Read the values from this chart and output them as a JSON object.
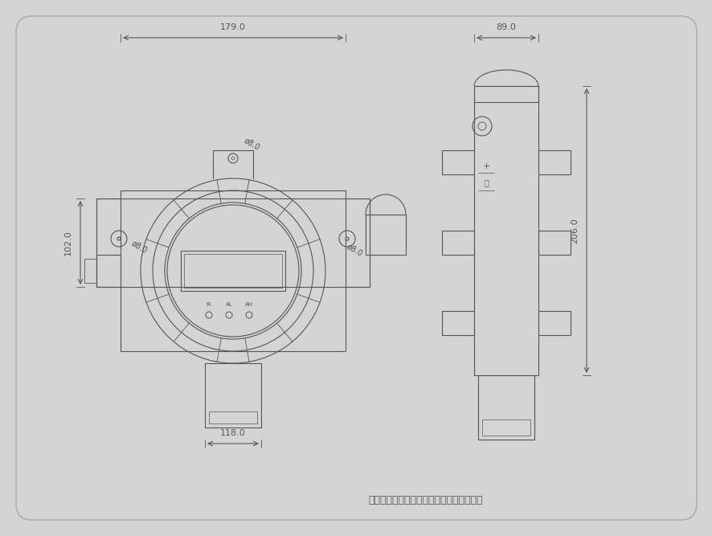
{
  "bg_color": "#d4d4d4",
  "line_color": "#555555",
  "dim_color": "#555555",
  "title": "带声光报警气体检测仪外形及其安装孔位图",
  "title_fontsize": 9,
  "dim_fontsize": 8,
  "label_fontsize": 7,
  "dim_179": "179.0",
  "dim_102": "102.0",
  "dim_118": "118.0",
  "dim_89": "89.0",
  "dim_206": "206.0",
  "dim_phi8_top": "ø8.0",
  "dim_phi8_left": "ø8.0",
  "dim_phi8_right": "ø8.0"
}
